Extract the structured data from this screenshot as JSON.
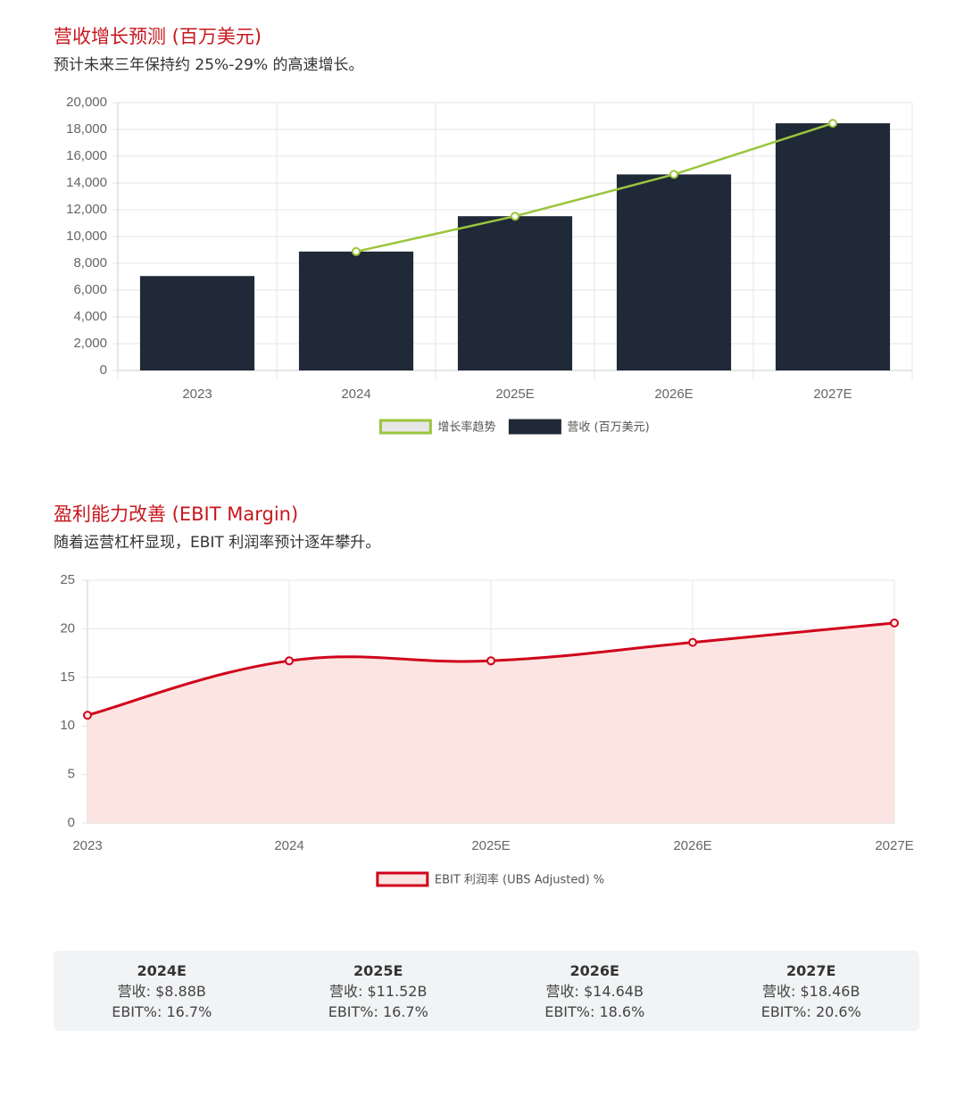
{
  "chart_data": [
    {
      "type": "bar",
      "title": "营收增长预测 (百万美元)",
      "subtitle": "预计未来三年保持约 25%-29% 的高速增长。",
      "categories": [
        "2023",
        "2024",
        "2025E",
        "2026E",
        "2027E"
      ],
      "series": [
        {
          "name": "增长率趋势",
          "type": "line",
          "color": "#9bc53d",
          "values": [
            null,
            8880,
            11520,
            14640,
            18460
          ]
        },
        {
          "name": "营收 (百万美元)",
          "type": "bar",
          "color": "#1f2937",
          "values": [
            7050,
            8880,
            11520,
            14640,
            18460
          ]
        }
      ],
      "ylim": [
        0,
        20000
      ],
      "yticks": [
        0,
        {
          "value": 2000,
          "label": "2,000"
        },
        {
          "value": 4000,
          "label": "4,000"
        },
        {
          "value": 6000,
          "label": "6,000"
        },
        {
          "value": 8000,
          "label": "8,000"
        },
        {
          "value": 10000,
          "label": "10,000"
        },
        {
          "value": 12000,
          "label": "12,000"
        },
        {
          "value": 14000,
          "label": "14,000"
        },
        {
          "value": 16000,
          "label": "16,000"
        },
        {
          "value": 18000,
          "label": "18,000"
        },
        {
          "value": 20000,
          "label": "20,000"
        }
      ],
      "grid": true,
      "legend": "bottom"
    },
    {
      "type": "line",
      "title": "盈利能力改善 (EBIT Margin)",
      "subtitle": "随着运营杠杆显现，EBIT 利润率预计逐年攀升。",
      "categories": [
        "2023",
        "2024",
        "2025E",
        "2026E",
        "2027E"
      ],
      "series": [
        {
          "name": "EBIT 利润率 (UBS Adjusted) %",
          "type": "line",
          "color": "#d0021b",
          "fill_color": "#fbe4e1",
          "area": true,
          "smooth": true,
          "values": [
            11.1,
            16.7,
            16.7,
            18.6,
            20.6
          ]
        }
      ],
      "ylim": [
        0,
        25
      ],
      "yticks": [
        0,
        5,
        10,
        15,
        20,
        25
      ],
      "grid": true,
      "legend": "bottom"
    }
  ],
  "summary": [
    {
      "year": "2024E",
      "revenue": "营收: $8.88B",
      "ebit": "EBIT%: 16.7%"
    },
    {
      "year": "2025E",
      "revenue": "营收: $11.52B",
      "ebit": "EBIT%: 16.7%"
    },
    {
      "year": "2026E",
      "revenue": "营收: $14.64B",
      "ebit": "EBIT%: 18.6%"
    },
    {
      "year": "2027E",
      "revenue": "营收: $18.46B",
      "ebit": "EBIT%: 20.6%"
    }
  ]
}
